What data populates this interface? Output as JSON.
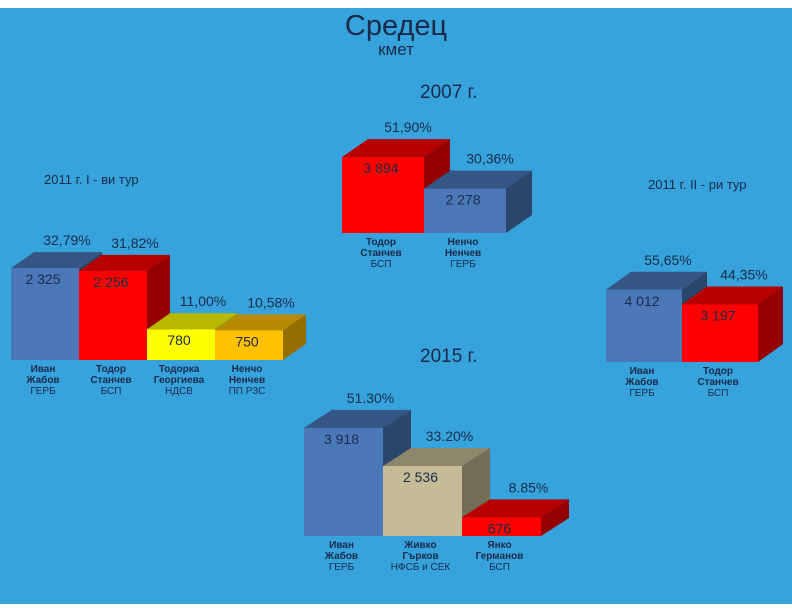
{
  "page": {
    "title": "Средец",
    "subtitle": "кмет",
    "background": "#36a3dc"
  },
  "chart_data": [
    {
      "type": "bar",
      "title": "2011 г. I - ви тур",
      "categories": [
        {
          "name": "Иван Жабов",
          "name_lines": [
            "Иван",
            "Жабов"
          ],
          "party": "ГЕРБ"
        },
        {
          "name": "Тодор Станчев",
          "name_lines": [
            "Тодор",
            "Станчев"
          ],
          "party": "БСП"
        },
        {
          "name": "Тодорка Георгиева",
          "name_lines": [
            "Тодорка",
            "Георгиева"
          ],
          "party": "НДСВ"
        },
        {
          "name": "Ненчо Ненчев",
          "name_lines": [
            "Ненчо",
            "Ненчев"
          ],
          "party": "ПП РЗС"
        }
      ],
      "values": [
        2325,
        2256,
        780,
        750
      ],
      "value_labels": [
        "2 325",
        "2 256",
        "780",
        "750"
      ],
      "percent_labels": [
        "32,79%",
        "31,82%",
        "11,00%",
        "10,58%"
      ],
      "colors": [
        "#4a78b8",
        "#ff0000",
        "#ffff00",
        "#ffc000"
      ]
    },
    {
      "type": "bar",
      "title": "2007 г.",
      "categories": [
        {
          "name": "Тодор Станчев",
          "name_lines": [
            "Тодор",
            "Станчев"
          ],
          "party": "БСП"
        },
        {
          "name": "Ненчо Ненчев",
          "name_lines": [
            "Ненчо",
            "Ненчев"
          ],
          "party": "ГЕРБ"
        }
      ],
      "values": [
        3894,
        2278
      ],
      "value_labels": [
        "3 894",
        "2 278"
      ],
      "percent_labels": [
        "51,90%",
        "30,36%"
      ],
      "colors": [
        "#ff0000",
        "#4a78b8"
      ]
    },
    {
      "type": "bar",
      "title": "2011 г. II - ри тур",
      "categories": [
        {
          "name": "Иван Жабов",
          "name_lines": [
            "Иван",
            "Жабов"
          ],
          "party": "ГЕРБ"
        },
        {
          "name": "Тодор Станчев",
          "name_lines": [
            "Тодор",
            "Станчев"
          ],
          "party": "БСП"
        }
      ],
      "values": [
        4012,
        3197
      ],
      "value_labels": [
        "4 012",
        "3 197"
      ],
      "percent_labels": [
        "55,65%",
        "44,35%"
      ],
      "colors": [
        "#4a78b8",
        "#ff0000"
      ]
    },
    {
      "type": "bar",
      "title": "2015 г.",
      "categories": [
        {
          "name": "Иван Жабов",
          "name_lines": [
            "Иван",
            "Жабов"
          ],
          "party": "ГЕРБ"
        },
        {
          "name": "Живко Гърков",
          "name_lines": [
            "Живко",
            "Гърков"
          ],
          "party": "НФСБ и СЕК"
        },
        {
          "name": "Янко Германов",
          "name_lines": [
            "Янко",
            "Германов"
          ],
          "party": "БСП"
        }
      ],
      "values": [
        3918,
        2536,
        676
      ],
      "value_labels": [
        "3 918",
        "2 536",
        "676"
      ],
      "percent_labels": [
        "51.30%",
        "33.20%",
        "8.85%"
      ],
      "colors": [
        "#4a78b8",
        "#c4bc96",
        "#ff0000"
      ]
    }
  ]
}
